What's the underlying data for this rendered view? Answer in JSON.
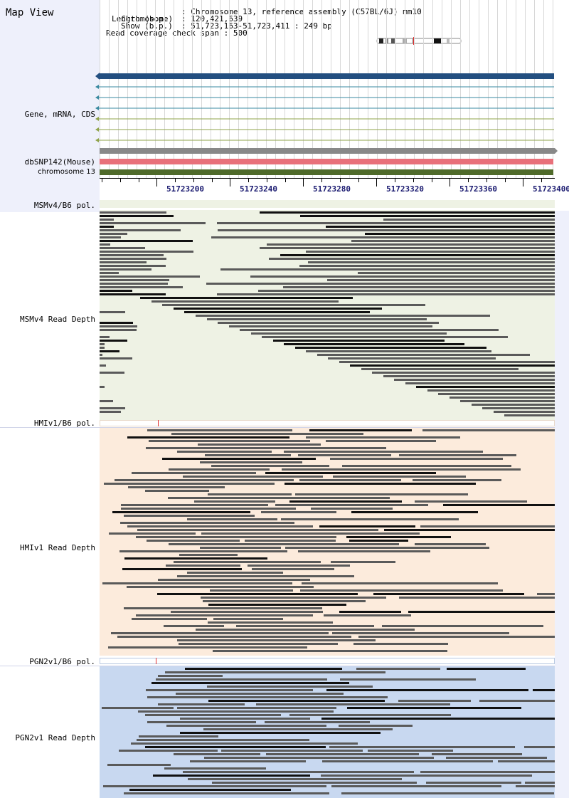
{
  "app": {
    "title": "Map View"
  },
  "info": {
    "chromosome_label": "Chromosome",
    "chromosome_value": "Chromosome 13, reference assembly (C57BL/6J) mm10",
    "length_label": "Length (b.p.)",
    "length_value": "120,421,639",
    "show_label": "Show (b.p.)",
    "show_value": "51,723,163-51,723,411 : 249 bp",
    "coverage_label": "Read coverage check span",
    "coverage_value": "500"
  },
  "tracks": {
    "gene_label": "Gene, mRNA, CDS",
    "snp_label": "dbSNP142(Mouse)",
    "chromosome_label": "chromosome 13"
  },
  "ruler": {
    "ticks": [
      "51723200",
      "51723240",
      "51723280",
      "51723320",
      "51723360",
      "51723400"
    ]
  },
  "strains": [
    {
      "pol_label": "MSMv4/B6 pol.",
      "depth_label": "MSMv4 Read Depth",
      "bg": "#eef2e4"
    },
    {
      "pol_label": "HMIv1/B6 pol.",
      "depth_label": "HMIv1 Read Depth",
      "bg": "#fcebdc"
    },
    {
      "pol_label": "PGN2v1/B6 pol.",
      "depth_label": "PGN2v1 Read Depth",
      "bg": "#c8d8f0"
    }
  ],
  "colors": {
    "gene_main": "#234f80",
    "gene_thin": "#3a8aa0",
    "mrna_thin": "#8fa34a",
    "snp_gray": "#888888",
    "snp_red": "#e8707a",
    "chrom_green": "#4f6a2a",
    "read_dark": "#5a5a5a",
    "read_black": "#111111"
  }
}
